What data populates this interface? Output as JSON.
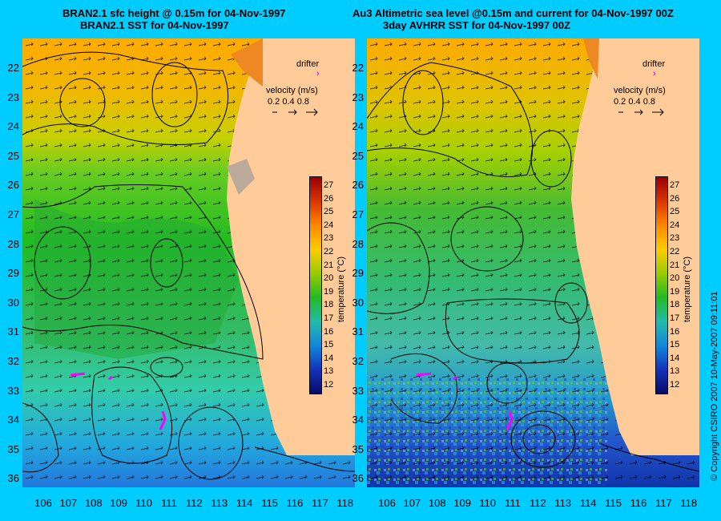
{
  "left_panel": {
    "title_line1": "BRAN2.1 sfc height @ 0.15m for 04-Nov-1997",
    "title_line2": "BRAN2.1 SST for 04-Nov-1997",
    "drifter_label": "drifter",
    "velocity_label": "velocity (m/s)",
    "velocity_scale": "0.2 0.4 0.8"
  },
  "right_panel": {
    "title_line1": "Au3 Altimetric sea level  @0.15m and current for 04-Nov-1997 00Z",
    "title_line2": "3day AVHRR SST for 04-Nov-1997 00Z",
    "drifter_label": "drifter",
    "velocity_label": "velocity (m/s)",
    "velocity_scale": "0.2 0.4 0.8"
  },
  "latitude_ticks": [
    "22",
    "23",
    "24",
    "25",
    "26",
    "27",
    "28",
    "29",
    "30",
    "31",
    "32",
    "33",
    "34",
    "35",
    "36"
  ],
  "longitude_ticks": [
    "106",
    "107",
    "108",
    "109",
    "110",
    "111",
    "112",
    "113",
    "114",
    "115",
    "116",
    "117",
    "118"
  ],
  "colorbar": {
    "title": "temperature (°C)",
    "ticks": [
      "27",
      "26",
      "25",
      "24",
      "23",
      "22",
      "21",
      "20",
      "19",
      "18",
      "17",
      "16",
      "15",
      "14",
      "13",
      "12"
    ]
  },
  "copyright": "© Copyright CSIRO 2007   10-May-2007 09:11:01",
  "colors": {
    "background": "#00ccff",
    "land": "#ffcc99",
    "drifter": "#ff00ff",
    "contour": "#000000"
  }
}
